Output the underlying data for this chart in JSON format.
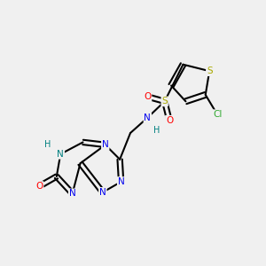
{
  "background_color": "#f0f0f0",
  "colors": {
    "N_blue": "#0000ee",
    "N_teal": "#008080",
    "S_yellow": "#aaaa00",
    "O_red": "#ff0000",
    "Cl_green": "#33aa33",
    "H_gray": "#008080",
    "bond": "#000000"
  },
  "layout": {
    "xlim": [
      0,
      1
    ],
    "ylim": [
      0,
      1
    ]
  }
}
